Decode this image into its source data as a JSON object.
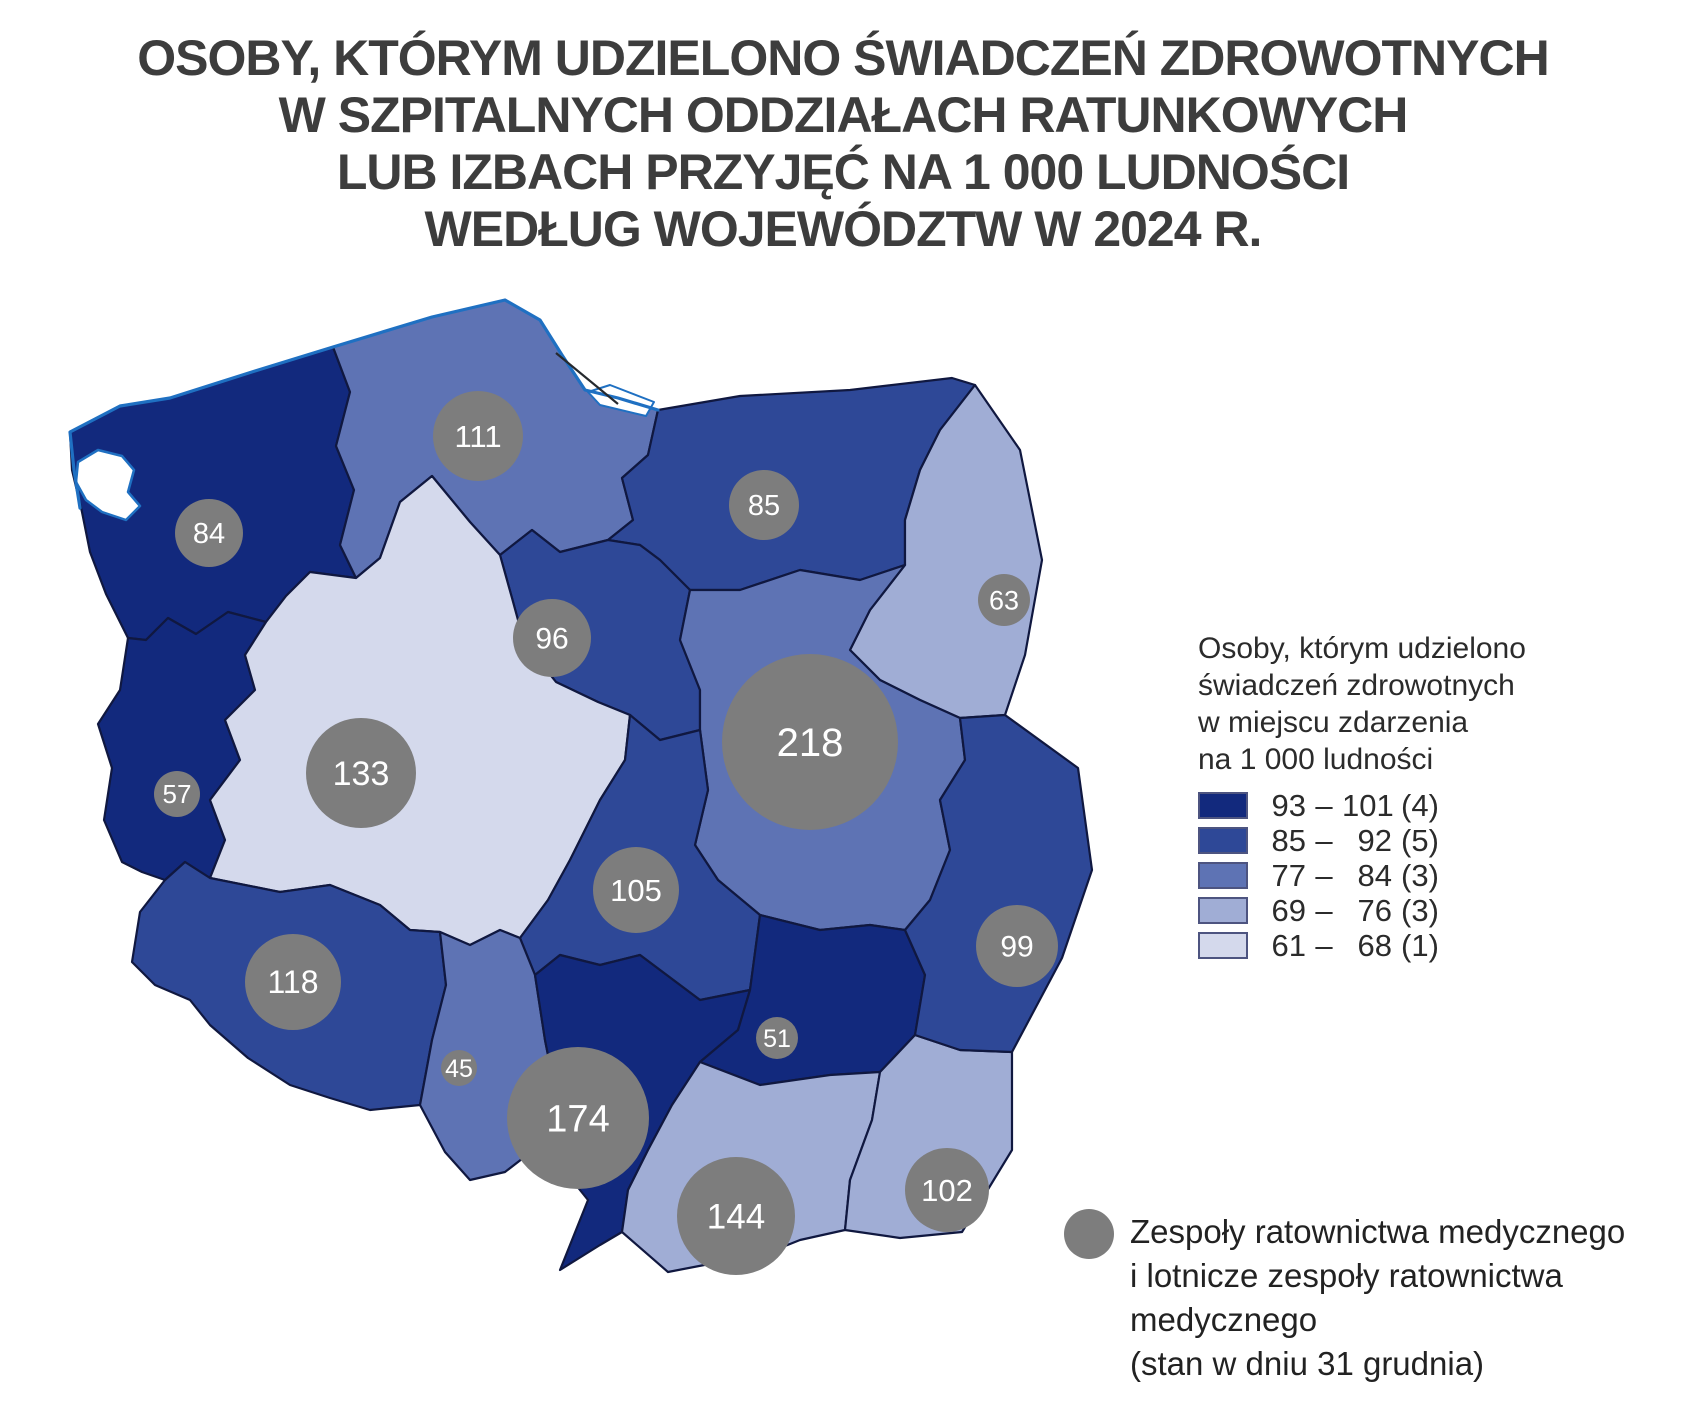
{
  "title": {
    "lines": [
      "OSOBY, KTÓRYM UDZIELONO ŚWIADCZEŃ ZDROWOTNYCH",
      "W SZPITALNYCH ODDZIAŁACH RATUNKOWYCH",
      "LUB IZBACH PRZYJĘĆ NA 1 000 LUDNOŚCI",
      "WEDŁUG WOJEWÓDZTW W 2024 R."
    ]
  },
  "map": {
    "border_color": "#101840",
    "coast_color": "#1f70c2",
    "water_fill": "#ffffff",
    "symbol_color": "#7d7d7d",
    "symbol_text_color": "#ffffff"
  },
  "choropleth_legend": {
    "title_lines": [
      "Osoby, którym udzielono",
      "świadczeń zdrowotnych",
      "w miejscu zdarzenia",
      "na 1 000 ludności"
    ],
    "classes": [
      {
        "from": "93",
        "to": "101",
        "count": "(4)",
        "color": "#12297d"
      },
      {
        "from": "85",
        "to": "92",
        "count": "(5)",
        "color": "#2e4897"
      },
      {
        "from": "77",
        "to": "84",
        "count": "(3)",
        "color": "#5e73b4"
      },
      {
        "from": "69",
        "to": "76",
        "count": "(3)",
        "color": "#a0add5"
      },
      {
        "from": "61",
        "to": "68",
        "count": "(1)",
        "color": "#d4d9ec"
      }
    ]
  },
  "symbol_legend": {
    "lines": [
      "Zespoły ratownictwa medycznego",
      "i lotnicze zespoły ratownictwa",
      "medycznego",
      "(stan w dniu 31 grudnia)"
    ]
  },
  "chart_data": {
    "type": "choropleth",
    "title": "Osoby, którym udzielono świadczeń zdrowotnych w szpitalnych oddziałach ratunkowych lub izbach przyjęć na 1 000 ludności według województw w 2024 r.",
    "rate_unit": "osoby na 1 000 ludności (w miejscu zdarzenia)",
    "symbol_unit": "zespoły ratownictwa medycznego i lotnicze zespoły ratownictwa medycznego (stan w dniu 31 grudnia)",
    "legend_position": "right",
    "class_counts": [
      4,
      5,
      3,
      3,
      1
    ],
    "regions": [
      {
        "id": "zachodniopomorskie",
        "name": "zachodniopomorskie",
        "emergency_teams": 84,
        "class_index": 0,
        "rate_range": "93 – 101"
      },
      {
        "id": "pomorskie",
        "name": "pomorskie",
        "emergency_teams": 111,
        "class_index": 2,
        "rate_range": "77 – 84"
      },
      {
        "id": "warminsko-mazurskie",
        "name": "warmińsko-mazurskie",
        "emergency_teams": 85,
        "class_index": 1,
        "rate_range": "85 – 92"
      },
      {
        "id": "podlaskie",
        "name": "podlaskie",
        "emergency_teams": 63,
        "class_index": 3,
        "rate_range": "69 – 76"
      },
      {
        "id": "kujawsko-pomorskie",
        "name": "kujawsko-pomorskie",
        "emergency_teams": 96,
        "class_index": 1,
        "rate_range": "85 – 92"
      },
      {
        "id": "mazowieckie",
        "name": "mazowieckie",
        "emergency_teams": 218,
        "class_index": 2,
        "rate_range": "77 – 84"
      },
      {
        "id": "lubuskie",
        "name": "lubuskie",
        "emergency_teams": 57,
        "class_index": 0,
        "rate_range": "93 – 101"
      },
      {
        "id": "wielkopolskie",
        "name": "wielkopolskie",
        "emergency_teams": 133,
        "class_index": 4,
        "rate_range": "61 – 68"
      },
      {
        "id": "lodzkie",
        "name": "łódzkie",
        "emergency_teams": 105,
        "class_index": 1,
        "rate_range": "85 – 92"
      },
      {
        "id": "dolnoslaskie",
        "name": "dolnośląskie",
        "emergency_teams": 118,
        "class_index": 1,
        "rate_range": "85 – 92"
      },
      {
        "id": "opolskie",
        "name": "opolskie",
        "emergency_teams": 45,
        "class_index": 2,
        "rate_range": "77 – 84"
      },
      {
        "id": "slaskie",
        "name": "śląskie",
        "emergency_teams": 174,
        "class_index": 0,
        "rate_range": "93 – 101"
      },
      {
        "id": "swietokrzyskie",
        "name": "świętokrzyskie",
        "emergency_teams": 51,
        "class_index": 0,
        "rate_range": "93 – 101"
      },
      {
        "id": "malopolskie",
        "name": "małopolskie",
        "emergency_teams": 144,
        "class_index": 3,
        "rate_range": "69 – 76"
      },
      {
        "id": "podkarpackie",
        "name": "podkarpackie",
        "emergency_teams": 102,
        "class_index": 3,
        "rate_range": "69 – 76"
      },
      {
        "id": "lubelskie",
        "name": "lubelskie",
        "emergency_teams": 99,
        "class_index": 1,
        "rate_range": "85 – 92"
      }
    ]
  }
}
